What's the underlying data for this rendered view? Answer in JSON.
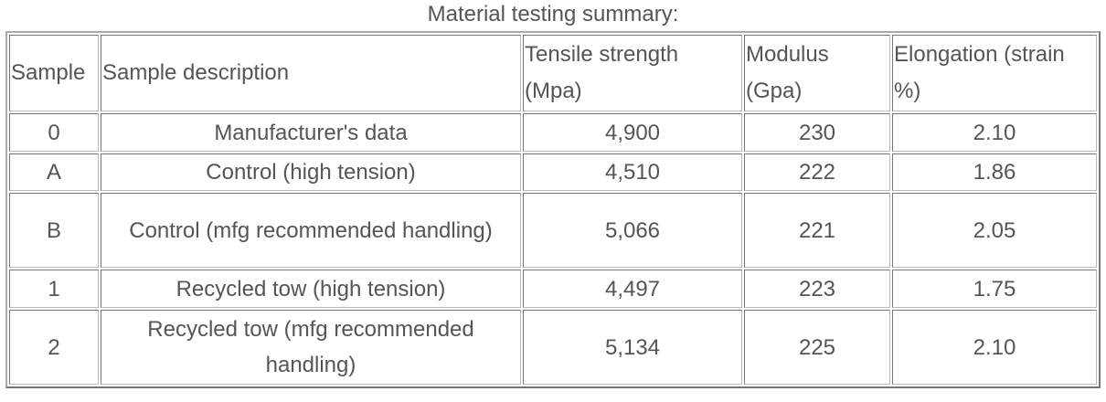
{
  "caption": "Material testing summary:",
  "table": {
    "header": [
      "Sample",
      "Sample description",
      "Tensile strength (Mpa)",
      "Modulus (Gpa)",
      "Elongation (strain %)"
    ],
    "rows": [
      [
        "0",
        "Manufacturer's data",
        "4,900",
        "230",
        "2.10"
      ],
      [
        "A",
        "Control (high tension)",
        "4,510",
        "222",
        "1.86"
      ],
      [
        "B",
        "Control (mfg recommended handling)",
        "5,066",
        "221",
        "2.05"
      ],
      [
        "1",
        "Recycled tow (high tension)",
        "4,497",
        "223",
        "1.75"
      ],
      [
        "2",
        "Recycled tow (mfg recommended handling)",
        "5,134",
        "225",
        "2.10"
      ]
    ]
  }
}
